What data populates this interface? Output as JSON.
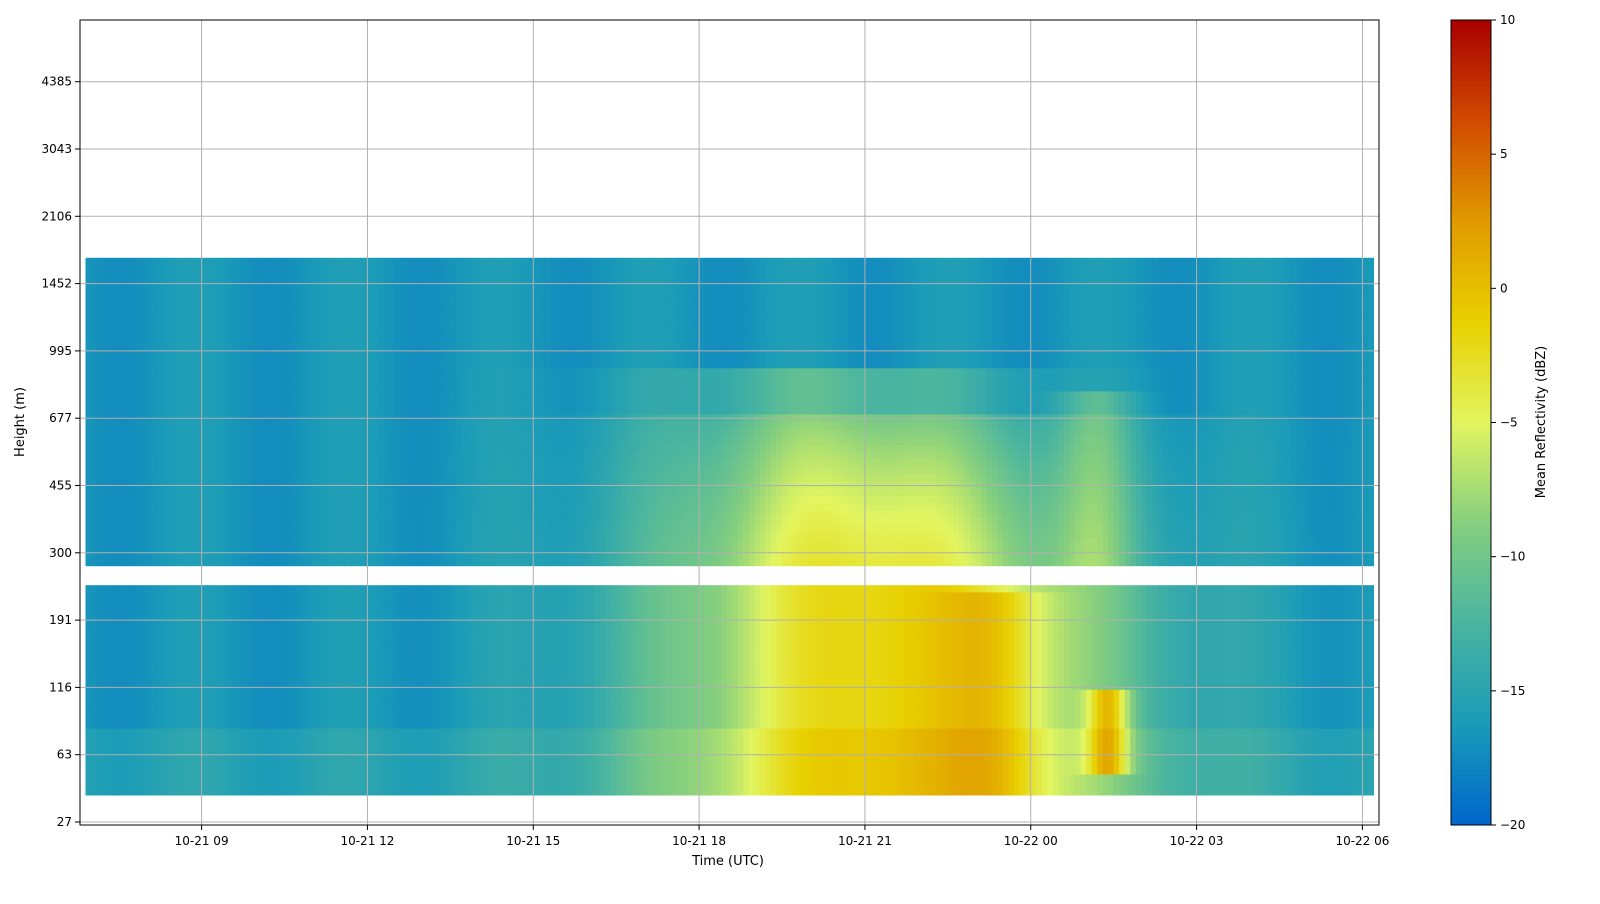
{
  "chart_data": {
    "type": "heatmap",
    "xlabel": "Time (UTC)",
    "ylabel": "Height (m)",
    "colorbar_label": "Mean Reflectivity (dBZ)",
    "x_ticks": [
      "10-21 09",
      "10-21 12",
      "10-21 15",
      "10-21 18",
      "10-21 21",
      "10-22 00",
      "10-22 03",
      "10-22 06"
    ],
    "x_tick_hours": [
      9,
      12,
      15,
      18,
      21,
      24,
      27,
      30
    ],
    "xlim_hours": [
      6.8,
      30.3
    ],
    "data_x_range_hours": [
      6.9,
      30.2
    ],
    "y_ticks": [
      "27",
      "63",
      "116",
      "191",
      "300",
      "455",
      "677",
      "995",
      "1452",
      "2106",
      "3043",
      "4385"
    ],
    "y_tick_values": [
      27,
      63,
      116,
      191,
      300,
      455,
      677,
      995,
      1452,
      2106,
      3043,
      4385
    ],
    "y_scale": "nonlinear (evenly spaced ticks)",
    "colorbar_ticks": [
      "10",
      "5",
      "0",
      "−5",
      "−10",
      "−15",
      "−20"
    ],
    "colorbar_tick_values": [
      10,
      5,
      0,
      -5,
      -10,
      -15,
      -20
    ],
    "clim": [
      -20,
      10
    ],
    "colormap": [
      "#0066cc",
      "#1a9bb8",
      "#49b4a0",
      "#86cf7e",
      "#e2f560",
      "#e8d000",
      "#e09a00",
      "#d14a00",
      "#a80000"
    ],
    "grid": true,
    "data_gap_height_m": [
      245,
      270
    ],
    "features": [
      {
        "hours": [
          7,
          30.2
        ],
        "height_m": [
          280,
          1700
        ],
        "dbz": -16
      },
      {
        "hours": [
          16,
          24.5
        ],
        "height_m": [
          120,
          900
        ],
        "dbz": -9
      },
      {
        "hours": [
          18,
          24.5
        ],
        "height_m": [
          35,
          245
        ],
        "dbz": -2
      },
      {
        "hours": [
          22.5,
          24
        ],
        "height_m": [
          35,
          220
        ],
        "dbz": 2
      },
      {
        "hours": [
          25.2,
          25.6
        ],
        "height_m": [
          55,
          110
        ],
        "dbz": 2
      }
    ]
  }
}
